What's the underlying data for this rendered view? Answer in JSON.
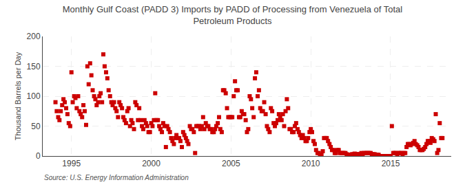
{
  "chart_data": {
    "type": "scatter",
    "title": "Monthly Gulf Coast (PADD 3) Imports by PADD of Processing from Venezuela of Total\nPetroleum Products",
    "y_label": "Thousand Barrels per Day",
    "annotations": [
      "Source: U.S. Energy Information Administration"
    ],
    "color": "#cc0000",
    "marker": "square",
    "grid": true,
    "xlim": [
      1993.2,
      2018.8
    ],
    "xticks": [
      1995,
      2000,
      2005,
      2010,
      2015
    ],
    "ylim": [
      0,
      200
    ],
    "yticks": [
      0,
      50,
      100,
      150,
      200
    ],
    "x": [
      1994.0,
      1994.08,
      1994.17,
      1994.25,
      1994.33,
      1994.42,
      1994.5,
      1994.58,
      1994.67,
      1994.75,
      1994.83,
      1994.92,
      1995.0,
      1995.08,
      1995.17,
      1995.25,
      1995.33,
      1995.42,
      1995.5,
      1995.58,
      1995.67,
      1995.75,
      1995.83,
      1995.92,
      1996.0,
      1996.08,
      1996.17,
      1996.25,
      1996.33,
      1996.42,
      1996.5,
      1996.58,
      1996.67,
      1996.75,
      1996.83,
      1996.92,
      1997.0,
      1997.08,
      1997.17,
      1997.25,
      1997.33,
      1997.42,
      1997.5,
      1997.58,
      1997.67,
      1997.75,
      1997.83,
      1997.92,
      1998.0,
      1998.08,
      1998.17,
      1998.25,
      1998.33,
      1998.42,
      1998.5,
      1998.58,
      1998.67,
      1998.75,
      1998.83,
      1998.92,
      1999.0,
      1999.08,
      1999.17,
      1999.25,
      1999.33,
      1999.42,
      1999.5,
      1999.58,
      1999.67,
      1999.75,
      1999.83,
      1999.92,
      2000.0,
      2000.08,
      2000.17,
      2000.25,
      2000.33,
      2000.42,
      2000.5,
      2000.58,
      2000.67,
      2000.75,
      2000.83,
      2000.92,
      2001.0,
      2001.08,
      2001.17,
      2001.25,
      2001.33,
      2001.42,
      2001.5,
      2001.58,
      2001.67,
      2001.75,
      2001.83,
      2001.92,
      2002.0,
      2002.08,
      2002.17,
      2002.25,
      2002.33,
      2002.42,
      2002.5,
      2002.58,
      2002.67,
      2002.75,
      2002.83,
      2002.92,
      2003.0,
      2003.08,
      2003.17,
      2003.25,
      2003.33,
      2003.42,
      2003.5,
      2003.58,
      2003.67,
      2003.75,
      2003.83,
      2003.92,
      2004.0,
      2004.08,
      2004.17,
      2004.25,
      2004.33,
      2004.42,
      2004.5,
      2004.58,
      2004.67,
      2004.75,
      2004.83,
      2004.92,
      2005.0,
      2005.08,
      2005.17,
      2005.25,
      2005.33,
      2005.42,
      2005.5,
      2005.58,
      2005.67,
      2005.75,
      2005.83,
      2005.92,
      2006.0,
      2006.08,
      2006.17,
      2006.25,
      2006.33,
      2006.42,
      2006.5,
      2006.58,
      2006.67,
      2006.75,
      2006.83,
      2006.92,
      2007.0,
      2007.08,
      2007.17,
      2007.25,
      2007.33,
      2007.42,
      2007.5,
      2007.58,
      2007.67,
      2007.75,
      2007.83,
      2007.92,
      2008.0,
      2008.08,
      2008.17,
      2008.25,
      2008.33,
      2008.42,
      2008.5,
      2008.58,
      2008.67,
      2008.75,
      2008.83,
      2008.92,
      2009.0,
      2009.08,
      2009.17,
      2009.25,
      2009.33,
      2009.42,
      2009.5,
      2009.58,
      2009.67,
      2009.75,
      2009.83,
      2009.92,
      2010.0,
      2010.08,
      2010.17,
      2010.25,
      2010.33,
      2010.42,
      2010.5,
      2010.58,
      2010.67,
      2010.75,
      2010.83,
      2010.92,
      2011.0,
      2011.08,
      2011.17,
      2011.25,
      2011.33,
      2011.42,
      2011.5,
      2011.58,
      2011.67,
      2011.75,
      2011.83,
      2011.92,
      2012.0,
      2012.08,
      2012.17,
      2012.25,
      2012.33,
      2012.42,
      2012.5,
      2012.58,
      2012.67,
      2012.75,
      2012.83,
      2012.92,
      2013.0,
      2013.08,
      2013.17,
      2013.25,
      2013.33,
      2013.42,
      2013.5,
      2013.58,
      2013.67,
      2013.75,
      2013.83,
      2013.92,
      2014.0,
      2014.08,
      2014.17,
      2014.25,
      2014.33,
      2014.42,
      2014.5,
      2014.58,
      2014.67,
      2014.75,
      2014.83,
      2014.92,
      2015.0,
      2015.08,
      2015.17,
      2015.25,
      2015.33,
      2015.42,
      2015.5,
      2015.58,
      2015.67,
      2015.75,
      2015.83,
      2015.92,
      2016.0,
      2016.08,
      2016.17,
      2016.25,
      2016.33,
      2016.42,
      2016.5,
      2016.58,
      2016.67,
      2016.75,
      2016.83,
      2016.92,
      2017.0,
      2017.08,
      2017.17,
      2017.25,
      2017.33,
      2017.42,
      2017.5,
      2017.58,
      2017.67,
      2017.75,
      2017.83,
      2017.92,
      2018.0,
      2018.08,
      2018.17,
      2018.25
    ],
    "values": [
      90,
      75,
      65,
      60,
      75,
      85,
      95,
      90,
      80,
      70,
      55,
      50,
      140,
      90,
      100,
      97,
      80,
      100,
      75,
      70,
      65,
      85,
      75,
      52,
      150,
      120,
      155,
      135,
      110,
      100,
      95,
      85,
      90,
      100,
      105,
      90,
      170,
      150,
      140,
      130,
      110,
      100,
      90,
      85,
      90,
      80,
      75,
      65,
      90,
      85,
      80,
      65,
      60,
      55,
      75,
      80,
      50,
      60,
      55,
      45,
      90,
      85,
      60,
      80,
      60,
      50,
      45,
      60,
      55,
      50,
      40,
      40,
      55,
      50,
      60,
      105,
      60,
      60,
      50,
      45,
      40,
      55,
      50,
      15,
      50,
      45,
      40,
      30,
      25,
      20,
      30,
      35,
      30,
      30,
      25,
      15,
      40,
      35,
      30,
      25,
      20,
      50,
      45,
      45,
      40,
      5,
      50,
      50,
      50,
      45,
      50,
      65,
      45,
      55,
      50,
      50,
      45,
      45,
      40,
      40,
      45,
      50,
      55,
      65,
      45,
      40,
      110,
      110,
      105,
      80,
      65,
      65,
      65,
      65,
      100,
      125,
      110,
      110,
      65,
      65,
      75,
      70,
      70,
      60,
      40,
      45,
      100,
      95,
      80,
      65,
      130,
      140,
      100,
      110,
      80,
      75,
      75,
      90,
      70,
      50,
      45,
      40,
      80,
      75,
      55,
      50,
      55,
      60,
      70,
      65,
      60,
      70,
      50,
      75,
      95,
      80,
      45,
      45,
      40,
      40,
      50,
      55,
      45,
      40,
      35,
      30,
      35,
      30,
      25,
      25,
      30,
      40,
      45,
      40,
      25,
      20,
      10,
      5,
      5,
      0,
      2,
      8,
      30,
      30,
      30,
      25,
      20,
      15,
      10,
      10,
      5,
      5,
      10,
      10,
      5,
      5,
      5,
      5,
      5,
      3,
      2,
      2,
      2,
      3,
      3,
      4,
      3,
      3,
      3,
      3,
      5,
      3,
      5,
      5,
      5,
      5,
      5,
      5,
      3,
      3,
      3,
      2,
      2,
      2,
      0,
      0,
      0,
      0,
      0,
      0,
      0,
      0,
      0,
      50,
      5,
      5,
      5,
      3,
      5,
      5,
      5,
      3,
      5,
      5,
      15,
      20,
      20,
      18,
      20,
      22,
      25,
      20,
      18,
      15,
      10,
      10,
      10,
      12,
      15,
      20,
      25,
      25,
      22,
      30,
      28,
      25,
      70,
      5,
      10,
      55,
      30,
      30
    ]
  }
}
